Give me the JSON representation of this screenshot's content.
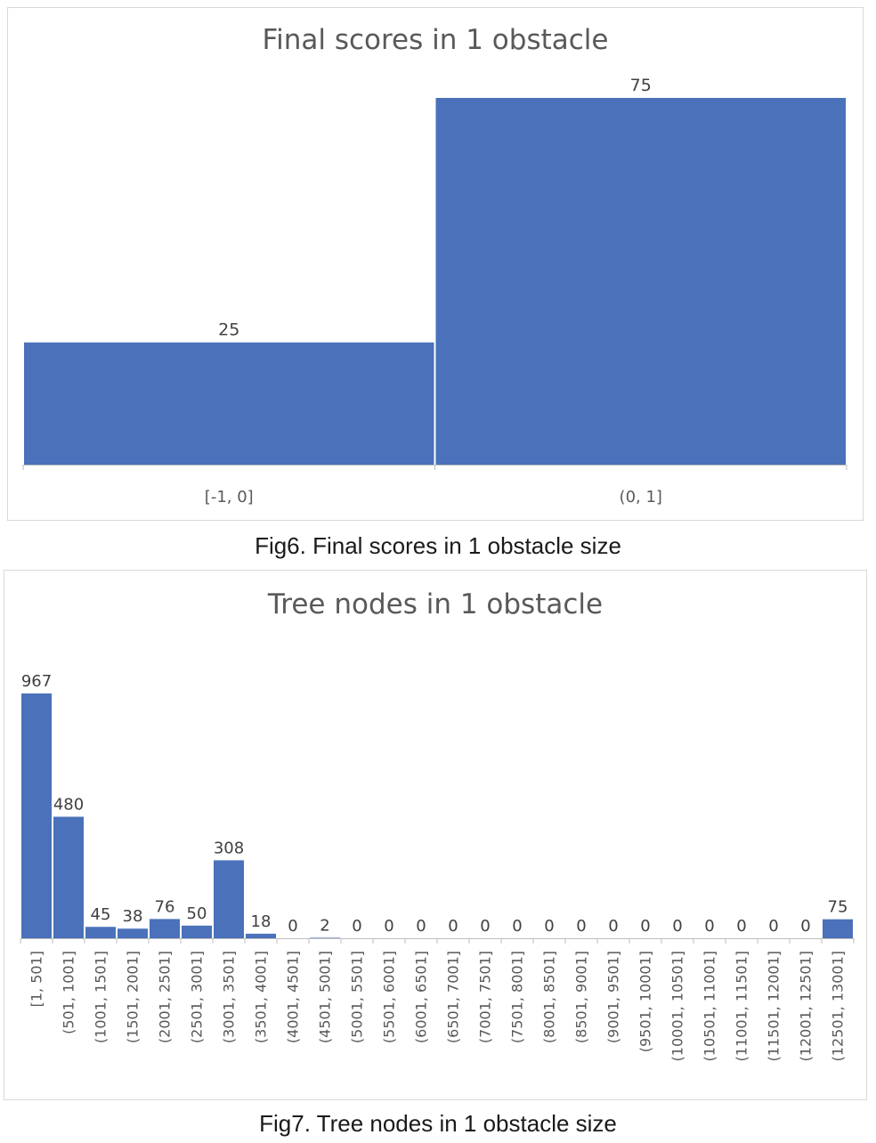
{
  "chart_data": [
    {
      "type": "bar",
      "title": "Final scores in 1 obstacle",
      "categories": [
        "[-1, 0]",
        "(0, 1]"
      ],
      "values": [
        25,
        75
      ],
      "ylim": [
        0,
        75
      ],
      "grid": false,
      "legend": "none",
      "bar_color": "#4a71ba",
      "caption": "Fig6. Final scores in 1 obstacle size"
    },
    {
      "type": "bar",
      "title": "Tree nodes in 1 obstacle",
      "categories": [
        "[1, 501]",
        "(501, 1001]",
        "(1001, 1501]",
        "(1501, 2001]",
        "(2001, 2501]",
        "(2501, 3001]",
        "(3001, 3501]",
        "(3501, 4001]",
        "(4001, 4501]",
        "(4501, 5001]",
        "(5001, 5501]",
        "(5501, 6001]",
        "(6001, 6501]",
        "(6501, 7001]",
        "(7001, 7501]",
        "(7501, 8001]",
        "(8001, 8501]",
        "(8501, 9001]",
        "(9001, 9501]",
        "(9501, 10001]",
        "(10001, 10501]",
        "(10501, 11001]",
        "(11001, 11501]",
        "(11501, 12001]",
        "(12001, 12501]",
        "(12501, 13001]"
      ],
      "values": [
        967,
        480,
        45,
        38,
        76,
        50,
        308,
        18,
        0,
        2,
        0,
        0,
        0,
        0,
        0,
        0,
        0,
        0,
        0,
        0,
        0,
        0,
        0,
        0,
        0,
        75
      ],
      "ylim": [
        0,
        967
      ],
      "grid": false,
      "legend": "none",
      "bar_color": "#4a71ba",
      "caption": "Fig7. Tree nodes in 1 obstacle size"
    }
  ]
}
